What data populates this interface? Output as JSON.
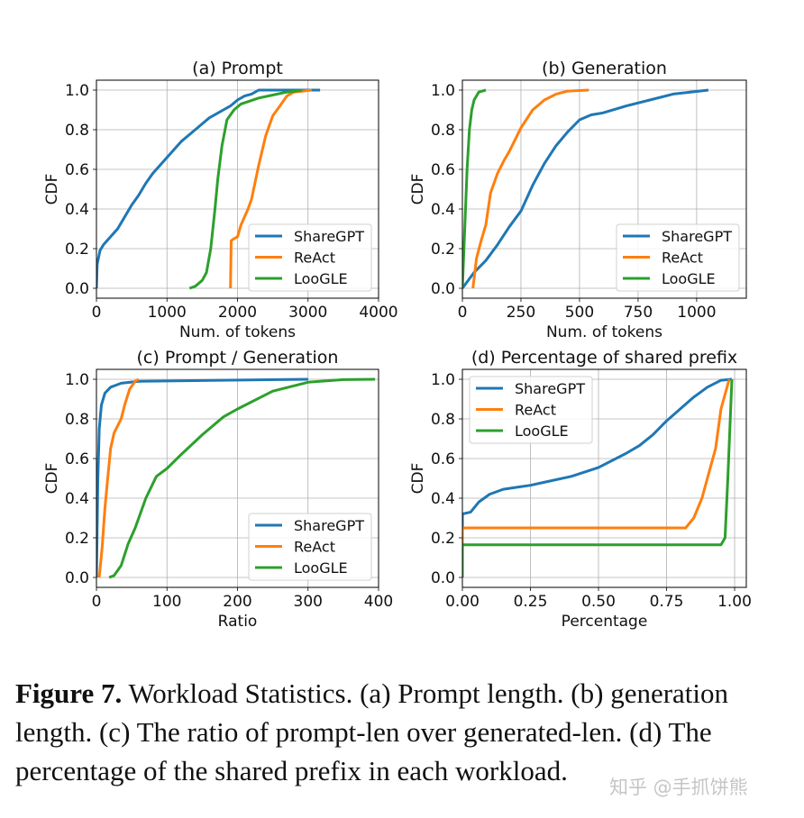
{
  "colors": {
    "ShareGPT": "#1f77b4",
    "ReAct": "#ff7f0e",
    "LooGLE": "#2ca02c"
  },
  "chart_data": [
    {
      "type": "line",
      "title": "(a) Prompt",
      "xlabel": "Num. of tokens",
      "ylabel": "CDF",
      "xlim": [
        0,
        4000
      ],
      "ylim": [
        -0.05,
        1.05
      ],
      "xticks": [
        0,
        1000,
        2000,
        3000,
        4000
      ],
      "xtick_labels": [
        "0",
        "1000",
        "2000",
        "3000",
        "4000"
      ],
      "yticks": [
        0,
        0.2,
        0.4,
        0.6,
        0.8,
        1.0
      ],
      "ytick_labels": [
        "0.0",
        "0.2",
        "0.4",
        "0.6",
        "0.8",
        "1.0"
      ],
      "grid": true,
      "legend": "lower-right",
      "series": [
        {
          "name": "ShareGPT",
          "x": [
            0,
            10,
            50,
            100,
            200,
            300,
            400,
            500,
            600,
            700,
            800,
            900,
            1000,
            1100,
            1200,
            1300,
            1400,
            1500,
            1600,
            1700,
            1800,
            1900,
            2000,
            2100,
            2200,
            2300,
            3170
          ],
          "y": [
            0,
            0.12,
            0.19,
            0.22,
            0.26,
            0.3,
            0.36,
            0.42,
            0.47,
            0.53,
            0.58,
            0.62,
            0.66,
            0.7,
            0.74,
            0.77,
            0.8,
            0.83,
            0.86,
            0.88,
            0.9,
            0.92,
            0.95,
            0.97,
            0.98,
            1.0,
            1.0
          ]
        },
        {
          "name": "ReAct",
          "x": [
            1900,
            1910,
            1950,
            2000,
            2050,
            2150,
            2200,
            2300,
            2400,
            2500,
            2600,
            2700,
            2800,
            3050
          ],
          "y": [
            0,
            0.24,
            0.25,
            0.26,
            0.32,
            0.4,
            0.45,
            0.62,
            0.77,
            0.87,
            0.92,
            0.97,
            0.99,
            1.0
          ]
        },
        {
          "name": "LooGLE",
          "x": [
            1320,
            1400,
            1500,
            1560,
            1620,
            1680,
            1720,
            1780,
            1850,
            1950,
            2050,
            2300,
            2500,
            2700,
            2920
          ],
          "y": [
            0,
            0.01,
            0.04,
            0.08,
            0.2,
            0.4,
            0.55,
            0.72,
            0.85,
            0.9,
            0.93,
            0.96,
            0.975,
            0.99,
            1.0
          ]
        }
      ]
    },
    {
      "type": "line",
      "title": "(b) Generation",
      "xlabel": "Num. of tokens",
      "ylabel": "CDF",
      "xlim": [
        0,
        1212
      ],
      "ylim": [
        -0.05,
        1.05
      ],
      "xticks": [
        0,
        250,
        500,
        750,
        1000
      ],
      "xtick_labels": [
        "0",
        "250",
        "500",
        "750",
        "1000"
      ],
      "yticks": [
        0,
        0.2,
        0.4,
        0.6,
        0.8,
        1.0
      ],
      "ytick_labels": [
        "0.0",
        "0.2",
        "0.4",
        "0.6",
        "0.8",
        "1.0"
      ],
      "grid": true,
      "legend": "lower-right",
      "series": [
        {
          "name": "ShareGPT",
          "x": [
            0,
            50,
            100,
            150,
            200,
            250,
            300,
            350,
            400,
            450,
            500,
            550,
            600,
            700,
            800,
            900,
            1050
          ],
          "y": [
            0,
            0.08,
            0.14,
            0.22,
            0.31,
            0.39,
            0.52,
            0.63,
            0.72,
            0.79,
            0.85,
            0.875,
            0.885,
            0.92,
            0.95,
            0.98,
            1.0
          ]
        },
        {
          "name": "ReAct",
          "x": [
            45,
            60,
            80,
            100,
            120,
            150,
            180,
            200,
            250,
            300,
            350,
            400,
            450,
            540
          ],
          "y": [
            0,
            0.15,
            0.24,
            0.32,
            0.48,
            0.58,
            0.65,
            0.69,
            0.81,
            0.9,
            0.95,
            0.98,
            0.995,
            1.0
          ]
        },
        {
          "name": "LooGLE",
          "x": [
            0,
            10,
            20,
            30,
            40,
            50,
            70,
            100
          ],
          "y": [
            0,
            0.3,
            0.6,
            0.8,
            0.9,
            0.95,
            0.99,
            1.0
          ]
        }
      ]
    },
    {
      "type": "line",
      "title": "(c) Prompt / Generation",
      "xlabel": "Ratio",
      "ylabel": "CDF",
      "xlim": [
        0,
        400
      ],
      "ylim": [
        -0.05,
        1.05
      ],
      "xticks": [
        0,
        100,
        200,
        300,
        400
      ],
      "xtick_labels": [
        "0",
        "100",
        "200",
        "300",
        "400"
      ],
      "yticks": [
        0,
        0.2,
        0.4,
        0.6,
        0.8,
        1.0
      ],
      "ytick_labels": [
        "0.0",
        "0.2",
        "0.4",
        "0.6",
        "0.8",
        "1.0"
      ],
      "grid": true,
      "legend": "lower-right",
      "series": [
        {
          "name": "ShareGPT",
          "x": [
            0,
            2,
            4,
            7,
            12,
            20,
            35,
            60,
            300
          ],
          "y": [
            0,
            0.5,
            0.75,
            0.87,
            0.93,
            0.96,
            0.98,
            0.99,
            1.0
          ]
        },
        {
          "name": "ReAct",
          "x": [
            4,
            8,
            12,
            16,
            20,
            25,
            35,
            40,
            47,
            55,
            60
          ],
          "y": [
            0,
            0.15,
            0.35,
            0.5,
            0.65,
            0.73,
            0.8,
            0.87,
            0.95,
            0.99,
            1.0
          ]
        },
        {
          "name": "LooGLE",
          "x": [
            18,
            25,
            35,
            45,
            55,
            70,
            85,
            100,
            120,
            150,
            180,
            200,
            250,
            300,
            350,
            395
          ],
          "y": [
            0,
            0.01,
            0.06,
            0.17,
            0.25,
            0.4,
            0.51,
            0.55,
            0.62,
            0.72,
            0.81,
            0.85,
            0.94,
            0.985,
            0.998,
            1.0
          ]
        }
      ]
    },
    {
      "type": "line",
      "title": "(d) Percentage of shared prefix",
      "xlabel": "Percentage",
      "ylabel": "CDF",
      "xlim": [
        0,
        1.043
      ],
      "ylim": [
        -0.05,
        1.05
      ],
      "xticks": [
        0,
        0.25,
        0.5,
        0.75,
        1.0
      ],
      "xtick_labels": [
        "0.00",
        "0.25",
        "0.50",
        "0.75",
        "1.00"
      ],
      "yticks": [
        0,
        0.2,
        0.4,
        0.6,
        0.8,
        1.0
      ],
      "ytick_labels": [
        "0.0",
        "0.2",
        "0.4",
        "0.6",
        "0.8",
        "1.0"
      ],
      "grid": true,
      "legend": "upper-left",
      "series": [
        {
          "name": "ShareGPT",
          "x": [
            0,
            0,
            0.03,
            0.06,
            0.1,
            0.15,
            0.2,
            0.25,
            0.3,
            0.4,
            0.5,
            0.6,
            0.65,
            0.7,
            0.75,
            0.8,
            0.85,
            0.9,
            0.95,
            0.99
          ],
          "y": [
            0.25,
            0.32,
            0.33,
            0.38,
            0.42,
            0.445,
            0.455,
            0.465,
            0.48,
            0.51,
            0.555,
            0.625,
            0.665,
            0.72,
            0.79,
            0.85,
            0.91,
            0.96,
            0.995,
            1.0
          ]
        },
        {
          "name": "ReAct",
          "x": [
            0,
            0,
            0.82,
            0.85,
            0.88,
            0.91,
            0.93,
            0.95,
            0.97,
            0.98
          ],
          "y": [
            0,
            0.25,
            0.25,
            0.3,
            0.4,
            0.55,
            0.65,
            0.85,
            0.95,
            1.0
          ]
        },
        {
          "name": "LooGLE",
          "x": [
            0,
            0,
            0.95,
            0.965,
            0.975,
            0.99
          ],
          "y": [
            0,
            0.165,
            0.165,
            0.2,
            0.5,
            1.0
          ]
        }
      ]
    }
  ],
  "caption": {
    "label": "Figure 7.",
    "text": " Workload Statistics. (a) Prompt length. (b) generation length. (c) The ratio of prompt-len over generated-len. (d) The percentage of the shared prefix in each workload."
  },
  "watermark": "知乎 @手抓饼熊"
}
